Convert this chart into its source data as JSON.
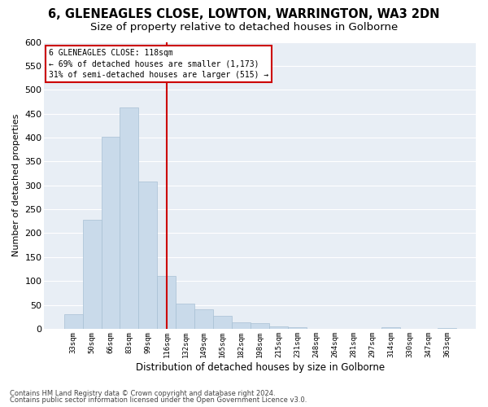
{
  "title1": "6, GLENEAGLES CLOSE, LOWTON, WARRINGTON, WA3 2DN",
  "title2": "Size of property relative to detached houses in Golborne",
  "xlabel": "Distribution of detached houses by size in Golborne",
  "ylabel": "Number of detached properties",
  "categories": [
    "33sqm",
    "50sqm",
    "66sqm",
    "83sqm",
    "99sqm",
    "116sqm",
    "132sqm",
    "149sqm",
    "165sqm",
    "182sqm",
    "198sqm",
    "215sqm",
    "231sqm",
    "248sqm",
    "264sqm",
    "281sqm",
    "297sqm",
    "314sqm",
    "330sqm",
    "347sqm",
    "363sqm"
  ],
  "values": [
    30,
    228,
    402,
    463,
    308,
    111,
    52,
    40,
    27,
    13,
    12,
    5,
    3,
    0,
    0,
    0,
    0,
    3,
    0,
    0,
    2
  ],
  "bar_color": "#c9daea",
  "bar_edge_color": "#a8c0d4",
  "vline_x_index": 5,
  "vline_color": "#cc0000",
  "annotation_line1": "6 GLENEAGLES CLOSE: 118sqm",
  "annotation_line2": "← 69% of detached houses are smaller (1,173)",
  "annotation_line3": "31% of semi-detached houses are larger (515) →",
  "annotation_box_color": "#cc0000",
  "ylim": [
    0,
    600
  ],
  "yticks": [
    0,
    50,
    100,
    150,
    200,
    250,
    300,
    350,
    400,
    450,
    500,
    550,
    600
  ],
  "bg_color": "#e8eef5",
  "footer1": "Contains HM Land Registry data © Crown copyright and database right 2024.",
  "footer2": "Contains public sector information licensed under the Open Government Licence v3.0.",
  "title1_fontsize": 10.5,
  "title2_fontsize": 9.5,
  "xlabel_fontsize": 8.5,
  "ylabel_fontsize": 8
}
